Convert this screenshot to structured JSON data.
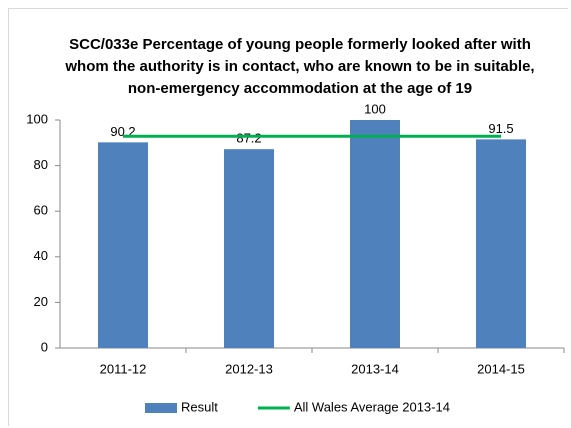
{
  "chart_data": {
    "type": "bar",
    "title": "SCC/033e Percentage of young people formerly looked after with whom the authority is in contact, who are known to be in suitable, non-emergency accommodation at the age of 19",
    "categories": [
      "2011-12",
      "2012-13",
      "2013-14",
      "2014-15"
    ],
    "series": [
      {
        "name": "Result",
        "color": "#4f81bd",
        "values": [
          90.2,
          87.2,
          100,
          91.5
        ]
      },
      {
        "name": "All Wales Average 2013-14",
        "type": "line",
        "color": "#00b050",
        "values": [
          92.9,
          92.9,
          92.9,
          92.9
        ]
      }
    ],
    "ylim": [
      0,
      100
    ],
    "yticks": [
      0,
      20,
      40,
      60,
      80,
      100
    ],
    "grid": false,
    "legend": "bottom"
  }
}
